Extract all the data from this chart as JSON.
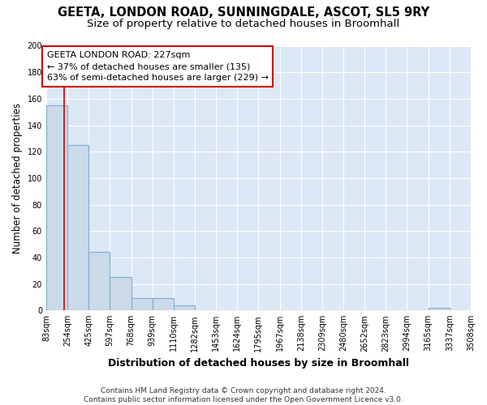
{
  "title": "GEETA, LONDON ROAD, SUNNINGDALE, ASCOT, SL5 9RY",
  "subtitle": "Size of property relative to detached houses in Broomhall",
  "xlabel": "Distribution of detached houses by size in Broomhall",
  "ylabel": "Number of detached properties",
  "bar_color": "#ccd9e8",
  "bar_edge_color": "#7aafd4",
  "background_color": "#dce8f5",
  "fig_background_color": "#ffffff",
  "grid_color": "#ffffff",
  "bin_edges": [
    83,
    254,
    425,
    597,
    768,
    939,
    1110,
    1282,
    1453,
    1624,
    1795,
    1967,
    2138,
    2309,
    2480,
    2652,
    2823,
    2994,
    3165,
    3337,
    3508
  ],
  "bin_labels": [
    "83sqm",
    "254sqm",
    "425sqm",
    "597sqm",
    "768sqm",
    "939sqm",
    "1110sqm",
    "1282sqm",
    "1453sqm",
    "1624sqm",
    "1795sqm",
    "1967sqm",
    "2138sqm",
    "2309sqm",
    "2480sqm",
    "2652sqm",
    "2823sqm",
    "2994sqm",
    "3165sqm",
    "3337sqm",
    "3508sqm"
  ],
  "bar_heights": [
    155,
    125,
    44,
    25,
    9,
    9,
    4,
    0,
    0,
    0,
    0,
    0,
    0,
    0,
    0,
    0,
    0,
    0,
    2,
    0,
    0
  ],
  "vline_x": 227,
  "vline_color": "#cc0000",
  "annotation_text": "GEETA LONDON ROAD: 227sqm\n← 37% of detached houses are smaller (135)\n63% of semi-detached houses are larger (229) →",
  "annotation_box_color": "#ffffff",
  "annotation_box_edge": "#cc0000",
  "ylim": [
    0,
    200
  ],
  "yticks": [
    0,
    20,
    40,
    60,
    80,
    100,
    120,
    140,
    160,
    180,
    200
  ],
  "footer_text": "Contains HM Land Registry data © Crown copyright and database right 2024.\nContains public sector information licensed under the Open Government Licence v3.0.",
  "title_fontsize": 10.5,
  "subtitle_fontsize": 9.5,
  "xlabel_fontsize": 9,
  "ylabel_fontsize": 8.5,
  "tick_fontsize": 7,
  "annotation_fontsize": 8,
  "footer_fontsize": 6.5
}
